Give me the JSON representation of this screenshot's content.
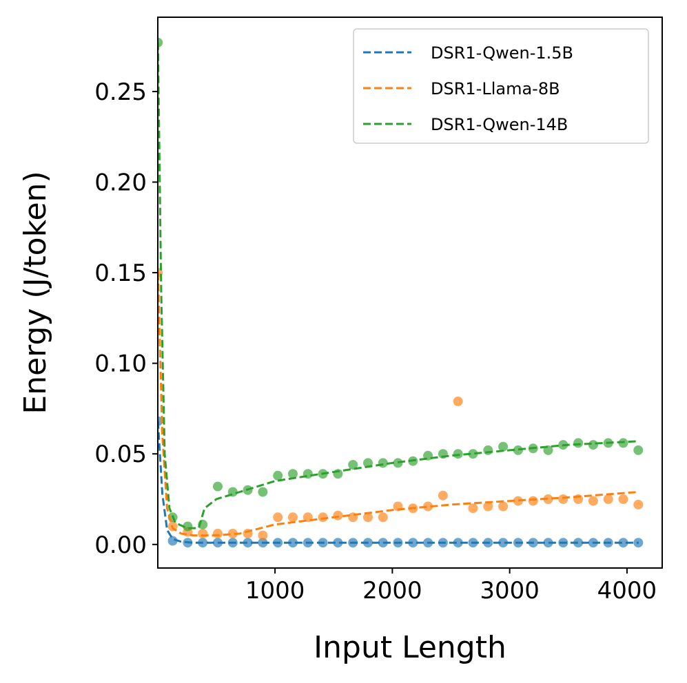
{
  "chart_data": {
    "type": "scatter",
    "xlabel": "Input Length",
    "ylabel": "Energy (J/token)",
    "xlim": [
      1,
      4300
    ],
    "ylim": [
      -0.013,
      0.291
    ],
    "xticks": [
      1000,
      2000,
      3000,
      4000
    ],
    "xtick_labels": [
      "1000",
      "2000",
      "3000",
      "4000"
    ],
    "yticks": [
      0.0,
      0.05,
      0.1,
      0.15,
      0.2,
      0.25
    ],
    "ytick_labels": [
      "0.00",
      "0.05",
      "0.10",
      "0.15",
      "0.20",
      "0.25"
    ],
    "grid": false,
    "legend_position": "top-right",
    "series": [
      {
        "name": "DSR1-Qwen-1.5B",
        "color": "#1f77b4",
        "points": [
          [
            2,
            0.068
          ],
          [
            128,
            0.002
          ],
          [
            256,
            0.001
          ],
          [
            384,
            0.001
          ],
          [
            512,
            0.001
          ],
          [
            640,
            0.001
          ],
          [
            768,
            0.001
          ],
          [
            896,
            0.001
          ],
          [
            1024,
            0.001
          ],
          [
            1152,
            0.001
          ],
          [
            1280,
            0.001
          ],
          [
            1408,
            0.001
          ],
          [
            1536,
            0.001
          ],
          [
            1664,
            0.001
          ],
          [
            1792,
            0.001
          ],
          [
            1920,
            0.001
          ],
          [
            2048,
            0.001
          ],
          [
            2176,
            0.001
          ],
          [
            2304,
            0.001
          ],
          [
            2432,
            0.001
          ],
          [
            2560,
            0.001
          ],
          [
            2688,
            0.001
          ],
          [
            2816,
            0.001
          ],
          [
            2944,
            0.001
          ],
          [
            3072,
            0.001
          ],
          [
            3200,
            0.001
          ],
          [
            3328,
            0.001
          ],
          [
            3456,
            0.001
          ],
          [
            3584,
            0.001
          ],
          [
            3712,
            0.001
          ],
          [
            3840,
            0.001
          ],
          [
            3968,
            0.001
          ],
          [
            4096,
            0.001
          ]
        ],
        "fit": [
          [
            2,
            0.068
          ],
          [
            40,
            0.028
          ],
          [
            80,
            0.008
          ],
          [
            128,
            0.003
          ],
          [
            200,
            0.0015
          ],
          [
            300,
            0.001
          ],
          [
            4100,
            0.001
          ]
        ]
      },
      {
        "name": "DSR1-Llama-8B",
        "color": "#ff7f0e",
        "points": [
          [
            2,
            0.15
          ],
          [
            128,
            0.01
          ],
          [
            256,
            0.007
          ],
          [
            384,
            0.006
          ],
          [
            512,
            0.006
          ],
          [
            640,
            0.006
          ],
          [
            768,
            0.006
          ],
          [
            896,
            0.005
          ],
          [
            1024,
            0.015
          ],
          [
            1152,
            0.015
          ],
          [
            1280,
            0.015
          ],
          [
            1408,
            0.015
          ],
          [
            1536,
            0.016
          ],
          [
            1664,
            0.015
          ],
          [
            1792,
            0.015
          ],
          [
            1920,
            0.015
          ],
          [
            2048,
            0.021
          ],
          [
            2176,
            0.02
          ],
          [
            2304,
            0.021
          ],
          [
            2432,
            0.027
          ],
          [
            2560,
            0.079
          ],
          [
            2688,
            0.02
          ],
          [
            2816,
            0.021
          ],
          [
            2944,
            0.021
          ],
          [
            3072,
            0.024
          ],
          [
            3200,
            0.024
          ],
          [
            3328,
            0.025
          ],
          [
            3456,
            0.025
          ],
          [
            3584,
            0.025
          ],
          [
            3712,
            0.024
          ],
          [
            3840,
            0.025
          ],
          [
            3968,
            0.025
          ],
          [
            4096,
            0.022
          ]
        ],
        "fit": [
          [
            2,
            0.15
          ],
          [
            40,
            0.06
          ],
          [
            80,
            0.02
          ],
          [
            128,
            0.009
          ],
          [
            200,
            0.006
          ],
          [
            300,
            0.005
          ],
          [
            500,
            0.005
          ],
          [
            700,
            0.006
          ],
          [
            1000,
            0.011
          ],
          [
            1500,
            0.015
          ],
          [
            2000,
            0.019
          ],
          [
            2500,
            0.022
          ],
          [
            3000,
            0.024
          ],
          [
            3500,
            0.026
          ],
          [
            4100,
            0.029
          ]
        ]
      },
      {
        "name": "DSR1-Qwen-14B",
        "color": "#2ca02c",
        "points": [
          [
            2,
            0.277
          ],
          [
            128,
            0.015
          ],
          [
            256,
            0.01
          ],
          [
            384,
            0.011
          ],
          [
            512,
            0.032
          ],
          [
            640,
            0.029
          ],
          [
            768,
            0.03
          ],
          [
            896,
            0.029
          ],
          [
            1024,
            0.038
          ],
          [
            1152,
            0.039
          ],
          [
            1280,
            0.039
          ],
          [
            1408,
            0.039
          ],
          [
            1536,
            0.039
          ],
          [
            1664,
            0.044
          ],
          [
            1792,
            0.045
          ],
          [
            1920,
            0.045
          ],
          [
            2048,
            0.045
          ],
          [
            2176,
            0.046
          ],
          [
            2304,
            0.049
          ],
          [
            2432,
            0.05
          ],
          [
            2560,
            0.05
          ],
          [
            2688,
            0.05
          ],
          [
            2816,
            0.052
          ],
          [
            2944,
            0.054
          ],
          [
            3072,
            0.052
          ],
          [
            3200,
            0.053
          ],
          [
            3328,
            0.052
          ],
          [
            3456,
            0.055
          ],
          [
            3584,
            0.056
          ],
          [
            3712,
            0.055
          ],
          [
            3840,
            0.056
          ],
          [
            3968,
            0.056
          ],
          [
            4096,
            0.052
          ]
        ],
        "fit": [
          [
            2,
            0.277
          ],
          [
            30,
            0.14
          ],
          [
            60,
            0.05
          ],
          [
            100,
            0.02
          ],
          [
            150,
            0.012
          ],
          [
            250,
            0.009
          ],
          [
            350,
            0.009
          ],
          [
            400,
            0.02
          ],
          [
            500,
            0.025
          ],
          [
            700,
            0.029
          ],
          [
            1000,
            0.035
          ],
          [
            1500,
            0.04
          ],
          [
            2000,
            0.045
          ],
          [
            2500,
            0.049
          ],
          [
            3000,
            0.052
          ],
          [
            3500,
            0.055
          ],
          [
            4100,
            0.057
          ]
        ]
      }
    ]
  }
}
